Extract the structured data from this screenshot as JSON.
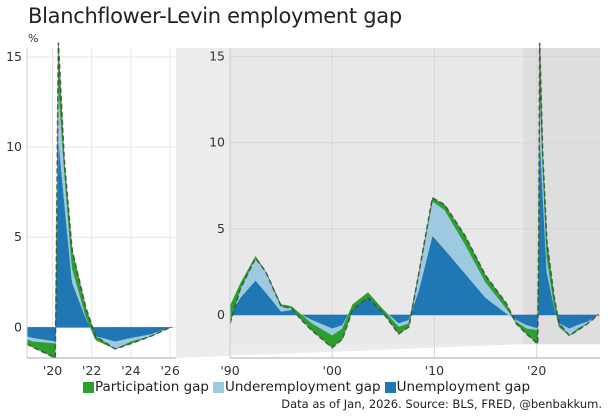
{
  "title": "Blanchflower-Levin employment gap",
  "unit": "%",
  "legend": [
    {
      "label": "Participation gap",
      "color": "#2ca02c"
    },
    {
      "label": "Underemployment gap",
      "color": "#9ecae1"
    },
    {
      "label": "Unemployment gap",
      "color": "#1f77b4"
    }
  ],
  "footnote": "Data as of Jan, 2026. Source: BLS, FRED, @benbakkum.",
  "chart_data": [
    {
      "type": "area",
      "panel": "zoom",
      "stacked": true,
      "ylabel": "%",
      "xlim": [
        2018.7,
        2026.3
      ],
      "ylim": [
        -1.7,
        15.5
      ],
      "yticks": [
        "0",
        "5",
        "10",
        "15"
      ],
      "yticks_values": [
        0,
        5,
        10,
        15
      ],
      "xticks": [
        "'20",
        "'22",
        "'24",
        "'26"
      ],
      "xticks_values": [
        2020,
        2022,
        2024,
        2026
      ],
      "grid": true
    },
    {
      "type": "area",
      "panel": "full",
      "stacked": true,
      "xlim": [
        1990,
        2026.2
      ],
      "ylim": [
        -2.5,
        15.5
      ],
      "yticks": [
        "0",
        "5",
        "10",
        "15"
      ],
      "yticks_values": [
        0,
        5,
        10,
        15
      ],
      "xticks": [
        "'90",
        "'00",
        "'10",
        "'20"
      ],
      "xticks_values": [
        1990,
        2000,
        2010,
        2020
      ],
      "grid": true,
      "highlight_range": [
        2018.7,
        2026.2
      ]
    }
  ],
  "series_points": {
    "columns": [
      "year",
      "unemployment_gap",
      "underemployment_gap",
      "participation_gap"
    ],
    "rows": [
      [
        1990,
        0,
        0.5,
        -1.0
      ],
      [
        1991,
        1.0,
        0.8,
        -0.3
      ],
      [
        1992.5,
        2.0,
        1.4,
        -0.1
      ],
      [
        1993.5,
        1.3,
        1.2,
        0
      ],
      [
        1995,
        0.2,
        0.4,
        -0.1
      ],
      [
        1996,
        0.3,
        0.2,
        -0.1
      ],
      [
        1997,
        0,
        0,
        -0.3
      ],
      [
        1998,
        -0.3,
        -0.2,
        -0.4
      ],
      [
        2000,
        -0.8,
        -0.4,
        -0.7
      ],
      [
        2001,
        -0.6,
        -0.2,
        -0.6
      ],
      [
        2002,
        0.5,
        0.1,
        -0.3
      ],
      [
        2003.5,
        1.2,
        0.1,
        -0.3
      ],
      [
        2005,
        0.3,
        0,
        -0.2
      ],
      [
        2006.5,
        -0.5,
        -0.2,
        -0.4
      ],
      [
        2007.5,
        -0.3,
        -0.2,
        -0.2
      ],
      [
        2008.5,
        1.5,
        1.0,
        0
      ],
      [
        2009.8,
        4.6,
        2.0,
        0.2
      ],
      [
        2011,
        3.8,
        2.3,
        0.3
      ],
      [
        2013,
        2.4,
        1.7,
        0.5
      ],
      [
        2015,
        1.0,
        0.9,
        0.4
      ],
      [
        2017,
        0.1,
        0.3,
        0.3
      ],
      [
        2018,
        -0.3,
        -0.1,
        -0.1
      ],
      [
        2019,
        -0.6,
        -0.2,
        -0.3
      ],
      [
        2020.15,
        -0.8,
        -0.1,
        -0.8
      ],
      [
        2020.3,
        10.5,
        3.0,
        2.3
      ],
      [
        2020.6,
        7.0,
        1.7,
        0.6
      ],
      [
        2021,
        2.5,
        0.8,
        1.0
      ],
      [
        2021.7,
        0.5,
        0.1,
        0.5
      ],
      [
        2022.2,
        -0.5,
        -0.2,
        0.2
      ],
      [
        2023.2,
        -0.8,
        -0.4,
        0
      ],
      [
        2024,
        -0.6,
        -0.2,
        -0.1
      ],
      [
        2025,
        -0.4,
        -0.1,
        0
      ],
      [
        2026,
        0,
        0,
        0
      ]
    ]
  }
}
